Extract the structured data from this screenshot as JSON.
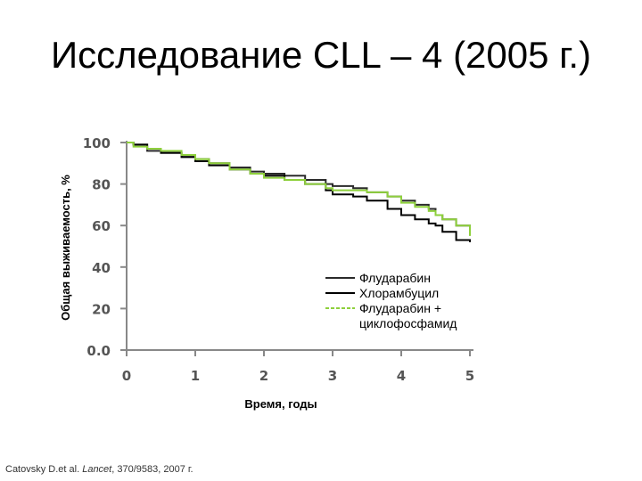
{
  "slide": {
    "title": "Исследование CLL – 4 (2005 г.)",
    "citation_authors": "Catovsky D.et al. ",
    "citation_journal": "Lancet",
    "citation_rest": ", 370/9583, 2007 г."
  },
  "chart_data": {
    "type": "line",
    "xlabel": "Время, годы",
    "ylabel": "Общая выживаемость, %",
    "xlim": [
      0,
      5
    ],
    "ylim": [
      0,
      100
    ],
    "x_ticks": [
      "0",
      "1",
      "2",
      "3",
      "4",
      "5"
    ],
    "y_ticks": [
      "0.0",
      "20",
      "40",
      "60",
      "80",
      "100"
    ],
    "grid": false,
    "legend_position": "lower-right",
    "series": [
      {
        "name": "Флударабин",
        "color": "#2a2a2a",
        "x": [
          0,
          0.1,
          0.3,
          0.5,
          0.8,
          1.0,
          1.2,
          1.5,
          1.8,
          2.0,
          2.3,
          2.6,
          2.9,
          3.0,
          3.3,
          3.5,
          3.8,
          4.0,
          4.2,
          4.4,
          4.5,
          4.6,
          4.8,
          5.0
        ],
        "y": [
          100,
          99,
          96,
          95,
          93,
          92,
          90,
          88,
          86,
          85,
          84,
          82,
          80,
          79,
          78,
          76,
          74,
          72,
          70,
          68,
          65,
          63,
          60,
          59
        ]
      },
      {
        "name": "Хлорамбуцил",
        "color": "#000000",
        "x": [
          0,
          0.1,
          0.3,
          0.5,
          0.8,
          1.0,
          1.2,
          1.5,
          1.8,
          2.0,
          2.3,
          2.6,
          2.9,
          3.0,
          3.3,
          3.5,
          3.8,
          4.0,
          4.2,
          4.4,
          4.5,
          4.6,
          4.8,
          5.0
        ],
        "y": [
          100,
          99,
          97,
          95,
          93,
          91,
          89,
          87,
          85,
          84,
          82,
          80,
          77,
          75,
          74,
          72,
          68,
          65,
          63,
          61,
          60,
          57,
          53,
          52
        ]
      },
      {
        "name": "Флударабин + циклофосфамид",
        "color": "#8ed03c",
        "x": [
          0,
          0.1,
          0.3,
          0.5,
          0.8,
          1.0,
          1.2,
          1.5,
          1.8,
          2.0,
          2.3,
          2.6,
          2.9,
          3.0,
          3.3,
          3.5,
          3.8,
          4.0,
          4.2,
          4.4,
          4.5,
          4.6,
          4.8,
          5.0
        ],
        "y": [
          100,
          98,
          97,
          96,
          94,
          92,
          90,
          87,
          85,
          83,
          82,
          80,
          78,
          77,
          77,
          76,
          74,
          71,
          69,
          67,
          65,
          63,
          60,
          55
        ]
      }
    ]
  }
}
